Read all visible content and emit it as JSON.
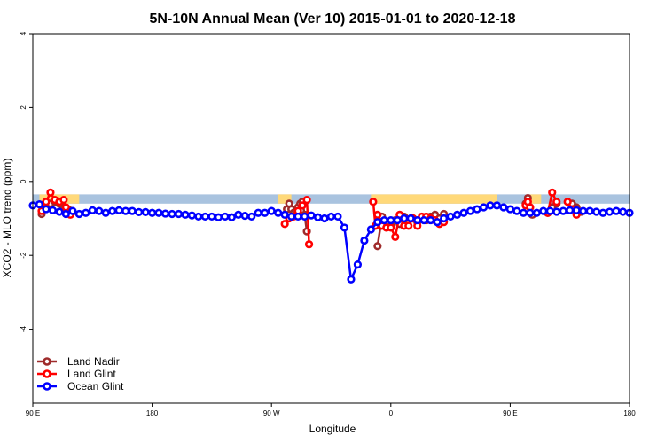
{
  "chart_data": {
    "type": "line",
    "title": "5N-10N Annual Mean (Ver 10)   2015-01-01 to 2020-12-18",
    "xlabel": "Longitude",
    "ylabel": "XCO2 - MLO trend (ppm)",
    "xlim": [
      -90,
      180
    ],
    "ylim": [
      -6,
      4
    ],
    "grid": false,
    "legend_position": "bottom-left",
    "x_ticks": [
      {
        "value": -90,
        "label": "90 E"
      },
      {
        "value": -36,
        "label": "180"
      },
      {
        "value": 18,
        "label": "90 W"
      },
      {
        "value": 72,
        "label": "0"
      },
      {
        "value": 126,
        "label": "90 E"
      },
      {
        "value": 180,
        "label": "180"
      }
    ],
    "y_ticks": [
      {
        "value": -4,
        "label": "-4"
      },
      {
        "value": -2,
        "label": "-2"
      },
      {
        "value": 0,
        "label": "0"
      },
      {
        "value": 2,
        "label": "2"
      },
      {
        "value": 4,
        "label": "4"
      }
    ],
    "land_strip": {
      "y_top": -0.35,
      "y_bottom": -0.6,
      "ocean_color": "#a9c3df",
      "land_color": "#ffd97a",
      "land_segments": [
        [
          -87,
          -69
        ],
        [
          21,
          27
        ],
        [
          63,
          120
        ],
        [
          135,
          140
        ]
      ]
    },
    "series": [
      {
        "name": "Land Nadir",
        "color": "#9e2b2b",
        "segments": [
          {
            "x": [
              -86,
              -84,
              -82,
              -80,
              -78,
              -77,
              -76,
              -74,
              -72
            ],
            "y": [
              -0.88,
              -0.7,
              -0.6,
              -0.55,
              -0.6,
              -0.65,
              -0.7,
              -0.75,
              -0.82
            ]
          },
          {
            "x": [
              25,
              26,
              27,
              28,
              29,
              30,
              31,
              32,
              33,
              34
            ],
            "y": [
              -0.75,
              -0.6,
              -0.75,
              -0.85,
              -0.8,
              -0.7,
              -0.6,
              -0.55,
              -0.9,
              -1.35
            ]
          },
          {
            "x": [
              66,
              68,
              70,
              72,
              74,
              76,
              78,
              80,
              82,
              84,
              86,
              88,
              90,
              92,
              94,
              96
            ],
            "y": [
              -1.75,
              -0.95,
              -1.25,
              -1.2,
              -1.05,
              -1.15,
              -0.95,
              -1.05,
              -1.0,
              -1.1,
              -1.0,
              -1.05,
              -0.95,
              -0.9,
              -1.0,
              -0.88
            ]
          },
          {
            "x": [
              133,
              134,
              135,
              136
            ],
            "y": [
              -0.6,
              -0.45,
              -0.7,
              -0.9
            ]
          },
          {
            "x": [
              143,
              145,
              147
            ],
            "y": [
              -0.85,
              -0.7,
              -0.6
            ]
          },
          {
            "x": [
              154,
              156,
              158
            ],
            "y": [
              -0.6,
              -0.7,
              -0.82
            ]
          }
        ]
      },
      {
        "name": "Land Glint",
        "color": "#ff0000",
        "segments": [
          {
            "x": [
              -86,
              -84,
              -82,
              -80,
              -78,
              -76,
              -75,
              -74,
              -73
            ],
            "y": [
              -0.8,
              -0.55,
              -0.3,
              -0.5,
              -0.55,
              -0.5,
              -0.7,
              -0.85,
              -0.9
            ]
          },
          {
            "x": [
              24,
              26,
              28,
              30,
              32,
              34,
              35
            ],
            "y": [
              -1.15,
              -1.0,
              -0.95,
              -0.8,
              -0.65,
              -0.5,
              -1.7
            ]
          },
          {
            "x": [
              64,
              65,
              66,
              68,
              70,
              72,
              74,
              76,
              78,
              80,
              82,
              84,
              86,
              88,
              90,
              92,
              94,
              96
            ],
            "y": [
              -0.55,
              -1.2,
              -0.9,
              -1.2,
              -1.25,
              -1.25,
              -1.5,
              -0.9,
              -1.2,
              -1.2,
              -1.0,
              -1.2,
              -0.95,
              -0.95,
              -1.0,
              -1.05,
              -1.15,
              -1.1
            ]
          },
          {
            "x": [
              133,
              134,
              135
            ],
            "y": [
              -0.65,
              -0.55,
              -0.7
            ]
          },
          {
            "x": [
              143,
              145,
              147
            ],
            "y": [
              -0.85,
              -0.3,
              -0.55
            ]
          },
          {
            "x": [
              152,
              154,
              156
            ],
            "y": [
              -0.55,
              -0.75,
              -0.9
            ]
          }
        ]
      },
      {
        "name": "Ocean Glint",
        "color": "#0000ff",
        "segments": [
          {
            "x": [
              -90,
              -87,
              -84,
              -81,
              -78,
              -75,
              -72,
              -69,
              -66,
              -63,
              -60,
              -57,
              -54,
              -51,
              -48,
              -45,
              -42,
              -39,
              -36,
              -33,
              -30,
              -27,
              -24,
              -21,
              -18,
              -15,
              -12,
              -9,
              -6,
              -3,
              0,
              3,
              6,
              9,
              12,
              15,
              18,
              21,
              24,
              27,
              30,
              33,
              36,
              39,
              42,
              45,
              48,
              51,
              54,
              57,
              60,
              63,
              66,
              69,
              72,
              75,
              78,
              81,
              84,
              87,
              90,
              93,
              96,
              99,
              102,
              105,
              108,
              111,
              114,
              117,
              120,
              123,
              126,
              129,
              132,
              135,
              138,
              141,
              144,
              147,
              150,
              153,
              156,
              159,
              162,
              165,
              168,
              171,
              174,
              177,
              180
            ],
            "y": [
              -0.65,
              -0.62,
              -0.75,
              -0.78,
              -0.82,
              -0.88,
              -0.8,
              -0.88,
              -0.85,
              -0.78,
              -0.8,
              -0.85,
              -0.8,
              -0.78,
              -0.8,
              -0.8,
              -0.83,
              -0.83,
              -0.85,
              -0.85,
              -0.87,
              -0.88,
              -0.88,
              -0.9,
              -0.92,
              -0.95,
              -0.95,
              -0.95,
              -0.97,
              -0.95,
              -0.97,
              -0.9,
              -0.93,
              -0.95,
              -0.85,
              -0.85,
              -0.8,
              -0.85,
              -0.9,
              -0.95,
              -0.95,
              -0.95,
              -0.92,
              -0.97,
              -1.0,
              -0.95,
              -0.95,
              -1.25,
              -2.65,
              -2.25,
              -1.6,
              -1.3,
              -1.1,
              -1.05,
              -1.05,
              -1.05,
              -1.0,
              -1.0,
              -1.05,
              -1.05,
              -1.05,
              -1.1,
              -1.0,
              -0.95,
              -0.9,
              -0.85,
              -0.8,
              -0.75,
              -0.7,
              -0.65,
              -0.65,
              -0.7,
              -0.75,
              -0.8,
              -0.85,
              -0.85,
              -0.85,
              -0.8,
              -0.8,
              -0.82,
              -0.8,
              -0.78,
              -0.78,
              -0.8,
              -0.8,
              -0.82,
              -0.85,
              -0.82,
              -0.8,
              -0.82,
              -0.85
            ]
          }
        ]
      }
    ]
  }
}
